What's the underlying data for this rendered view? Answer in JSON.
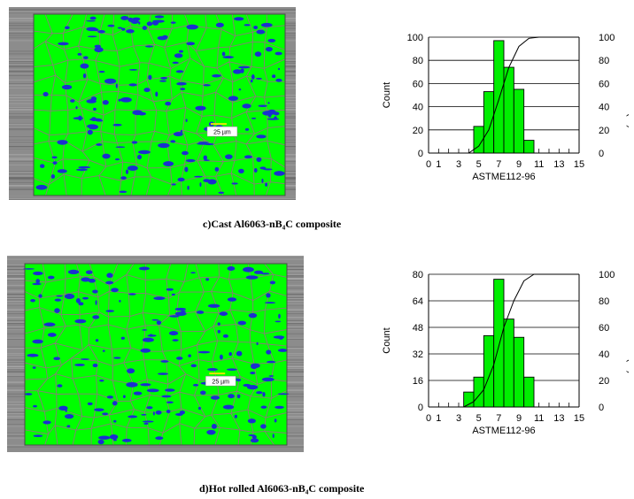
{
  "panels": [
    {
      "caption": "c)Cast Al6063-nB₄C composite",
      "scale_bar": "25 µm"
    },
    {
      "caption": "d)Hot rolled Al6063-nB₄C composite",
      "scale_bar": "25 µm"
    }
  ],
  "colors": {
    "grain": "#00ff00",
    "boundary": "#8a7a7a",
    "phase": "#1a2fd0",
    "bar": "#00ee00",
    "frame": "#8c8c8c"
  },
  "chart_data": [
    {
      "type": "bar",
      "title": "",
      "xlabel": "ASTME112-96",
      "ylabel": "Count",
      "y2label": "Cumulative (%)",
      "xticks": [
        "0",
        "1",
        "3",
        "5",
        "7",
        "9",
        "11",
        "13",
        "15"
      ],
      "xlim": [
        0,
        15
      ],
      "ylim": [
        0,
        100
      ],
      "yticks": [
        "0",
        "20",
        "40",
        "60",
        "80",
        "100"
      ],
      "y2ticks": [
        "0",
        "20",
        "40",
        "60",
        "80",
        "100"
      ],
      "bars": [
        {
          "x": 5,
          "value": 23
        },
        {
          "x": 6,
          "value": 53
        },
        {
          "x": 7,
          "value": 97
        },
        {
          "x": 8,
          "value": 74
        },
        {
          "x": 9,
          "value": 55
        },
        {
          "x": 10,
          "value": 11
        }
      ],
      "cumulative": [
        [
          4,
          0
        ],
        [
          5,
          6
        ],
        [
          6,
          20
        ],
        [
          7,
          46
        ],
        [
          8,
          74
        ],
        [
          9,
          92
        ],
        [
          10,
          99
        ],
        [
          11,
          100
        ],
        [
          15,
          100
        ]
      ],
      "grid": "horizontal"
    },
    {
      "type": "bar",
      "title": "",
      "xlabel": "ASTME112-96",
      "ylabel": "Count",
      "y2label": "Cumulative (%)",
      "xticks": [
        "0",
        "1",
        "3",
        "5",
        "7",
        "9",
        "11",
        "13",
        "15"
      ],
      "xlim": [
        0,
        15
      ],
      "ylim": [
        0,
        80
      ],
      "yticks": [
        "0",
        "16",
        "32",
        "48",
        "64",
        "80"
      ],
      "y2ticks": [
        "0",
        "20",
        "40",
        "60",
        "80",
        "100"
      ],
      "bars": [
        {
          "x": 4,
          "value": 9
        },
        {
          "x": 5,
          "value": 18
        },
        {
          "x": 6,
          "value": 43
        },
        {
          "x": 7,
          "value": 77
        },
        {
          "x": 8,
          "value": 53
        },
        {
          "x": 9,
          "value": 42
        },
        {
          "x": 10,
          "value": 18
        }
      ],
      "cumulative": [
        [
          3.5,
          0
        ],
        [
          4.5,
          4
        ],
        [
          5.5,
          13
        ],
        [
          6.5,
          32
        ],
        [
          7.5,
          60
        ],
        [
          8.5,
          80
        ],
        [
          9.5,
          95
        ],
        [
          10.5,
          100
        ],
        [
          15,
          100
        ]
      ],
      "grid": "horizontal"
    }
  ]
}
